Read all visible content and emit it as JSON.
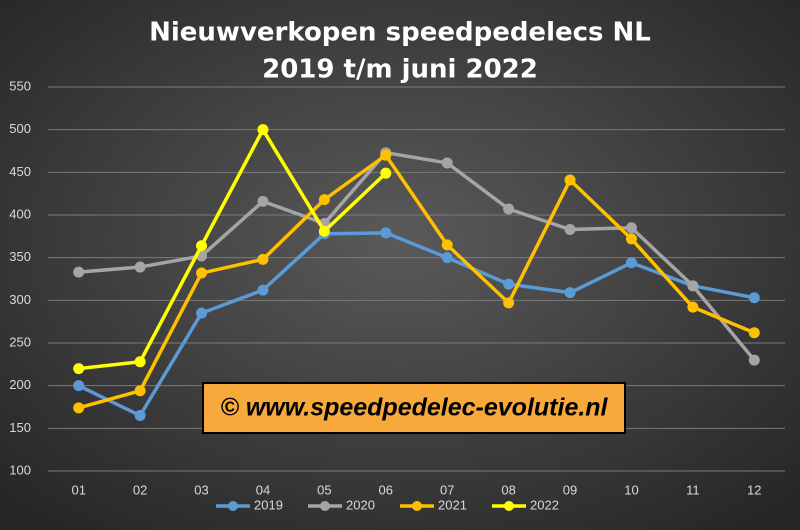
{
  "chart_data": {
    "type": "line",
    "title": "Nieuwverkopen speedpedelecs NL",
    "subtitle": "2019 t/m juni 2022",
    "annotation": "© www.speedpedelec-evolutie.nl",
    "categories": [
      "01",
      "02",
      "03",
      "04",
      "05",
      "06",
      "07",
      "08",
      "09",
      "10",
      "11",
      "12"
    ],
    "series": [
      {
        "name": "2019",
        "color": "#5b9bd5",
        "values": [
          200,
          165,
          285,
          312,
          378,
          379,
          350,
          319,
          309,
          344,
          317,
          303
        ]
      },
      {
        "name": "2020",
        "color": "#a5a5a5",
        "values": [
          333,
          339,
          352,
          416,
          390,
          473,
          461,
          407,
          383,
          385,
          317,
          230
        ]
      },
      {
        "name": "2021",
        "color": "#ffc000",
        "values": [
          174,
          194,
          332,
          348,
          418,
          470,
          365,
          297,
          441,
          372,
          292,
          262
        ]
      },
      {
        "name": "2022",
        "color": "#ffff00",
        "values": [
          220,
          228,
          364,
          500,
          381,
          449,
          null,
          null,
          null,
          null,
          null,
          null
        ]
      }
    ],
    "ylim": [
      100,
      550
    ],
    "yticks": [
      100,
      150,
      200,
      250,
      300,
      350,
      400,
      450,
      500,
      550
    ],
    "grid": true,
    "legend": "bottom"
  }
}
